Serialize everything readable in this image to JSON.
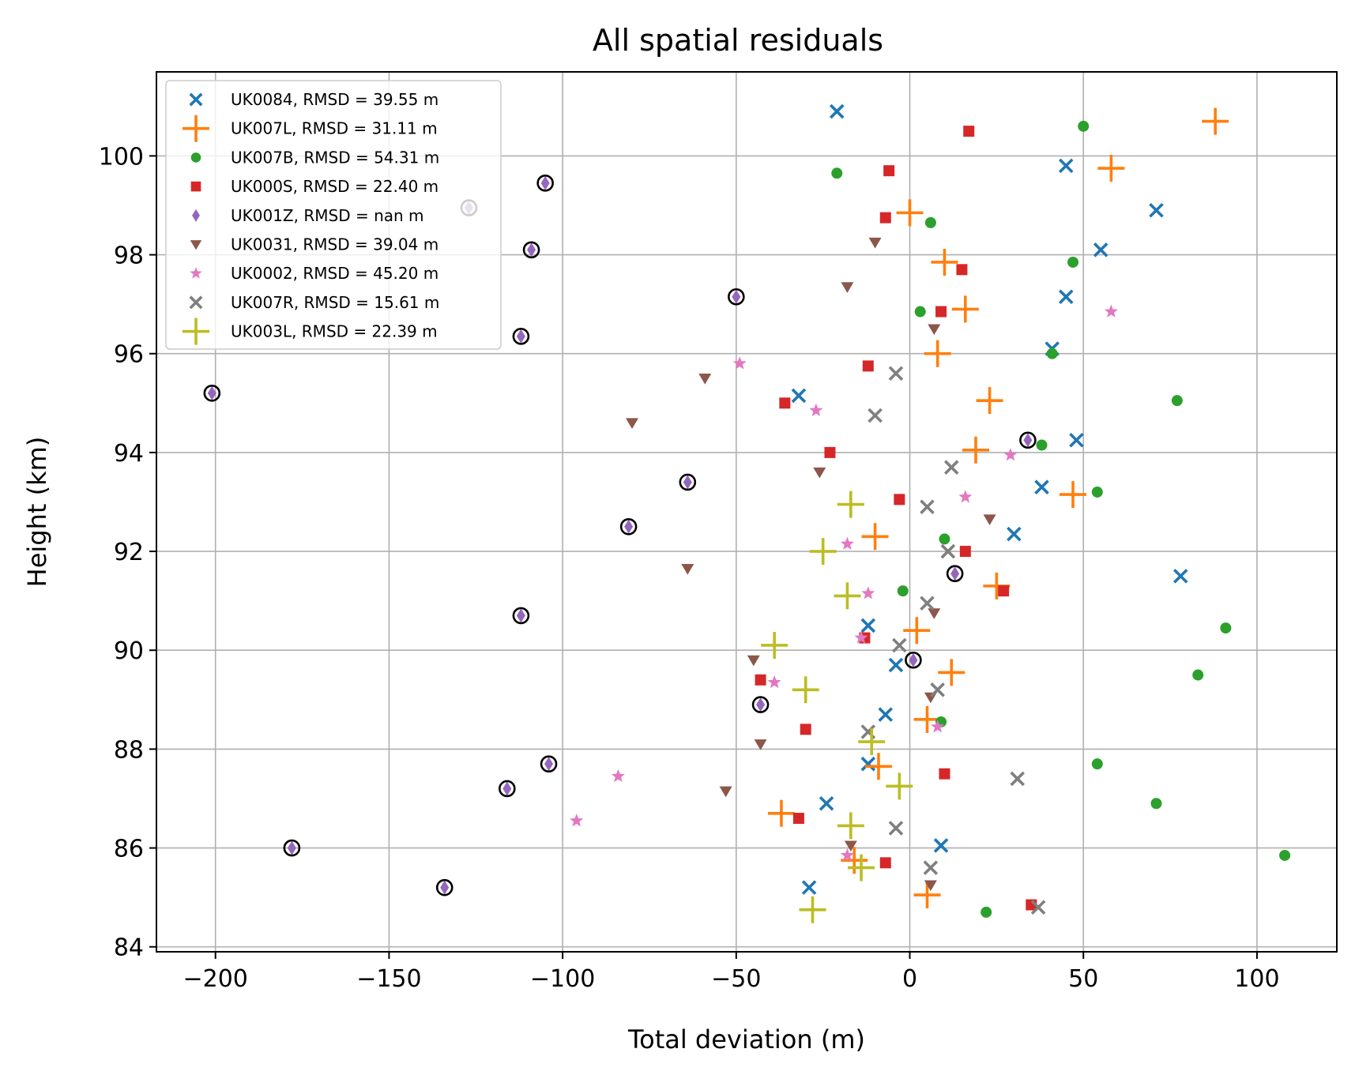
{
  "chart_data": {
    "type": "scatter",
    "title": "All spatial residuals",
    "xlabel": "Total deviation (m)",
    "ylabel": "Height (km)",
    "xlim": [
      -217,
      123
    ],
    "ylim": [
      83.9,
      101.7
    ],
    "xticks": [
      -200,
      -150,
      -100,
      -50,
      0,
      50,
      100
    ],
    "xtick_labels": [
      "−200",
      "−150",
      "−100",
      "−50",
      "0",
      "50",
      "100"
    ],
    "yticks": [
      84,
      86,
      88,
      90,
      92,
      94,
      96,
      98,
      100
    ],
    "ytick_labels": [
      "84",
      "86",
      "88",
      "90",
      "92",
      "94",
      "96",
      "98",
      "100"
    ],
    "grid": true,
    "legend_position": "upper left",
    "series": [
      {
        "name": "UK0084, RMSD = 39.55 m",
        "marker": "x",
        "color": "#1f77b4",
        "points": [
          [
            -21,
            100.9
          ],
          [
            45,
            99.8
          ],
          [
            71,
            98.9
          ],
          [
            55,
            98.1
          ],
          [
            45,
            97.15
          ],
          [
            41,
            96.1
          ],
          [
            -32,
            95.15
          ],
          [
            48,
            94.25
          ],
          [
            38,
            93.3
          ],
          [
            30,
            92.35
          ],
          [
            78,
            91.5
          ],
          [
            -12,
            90.5
          ],
          [
            -4,
            89.7
          ],
          [
            -7,
            88.7
          ],
          [
            -12,
            87.7
          ],
          [
            -24,
            86.9
          ],
          [
            9,
            86.05
          ],
          [
            -29,
            85.2
          ]
        ]
      },
      {
        "name": "UK007L, RMSD = 31.11 m",
        "marker": "plus",
        "color": "#ff7f0e",
        "points": [
          [
            88,
            100.7
          ],
          [
            58,
            99.75
          ],
          [
            0,
            98.85
          ],
          [
            10,
            97.85
          ],
          [
            16,
            96.9
          ],
          [
            8,
            96.0
          ],
          [
            23,
            95.05
          ],
          [
            19,
            94.05
          ],
          [
            47,
            93.15
          ],
          [
            -10,
            92.3
          ],
          [
            25,
            91.3
          ],
          [
            2,
            90.4
          ],
          [
            12,
            89.55
          ],
          [
            5,
            88.6
          ],
          [
            -9,
            87.65
          ],
          [
            -37,
            86.7
          ],
          [
            -16,
            85.75
          ],
          [
            5,
            85.05
          ]
        ]
      },
      {
        "name": "UK007B, RMSD = 54.31 m",
        "marker": "circle",
        "color": "#2ca02c",
        "points": [
          [
            50,
            100.6
          ],
          [
            -21,
            99.65
          ],
          [
            6,
            98.65
          ],
          [
            47,
            97.85
          ],
          [
            3,
            96.85
          ],
          [
            41,
            96.0
          ],
          [
            77,
            95.05
          ],
          [
            38,
            94.15
          ],
          [
            54,
            93.2
          ],
          [
            10,
            92.25
          ],
          [
            -2,
            91.2
          ],
          [
            91,
            90.45
          ],
          [
            83,
            89.5
          ],
          [
            9,
            88.55
          ],
          [
            54,
            87.7
          ],
          [
            71,
            86.9
          ],
          [
            108,
            85.85
          ],
          [
            22,
            84.7
          ]
        ]
      },
      {
        "name": "UK000S, RMSD = 22.40 m",
        "marker": "square",
        "color": "#d62728",
        "points": [
          [
            17,
            100.5
          ],
          [
            -6,
            99.7
          ],
          [
            -7,
            98.75
          ],
          [
            15,
            97.7
          ],
          [
            9,
            96.85
          ],
          [
            -12,
            95.75
          ],
          [
            -36,
            95.0
          ],
          [
            -23,
            94.0
          ],
          [
            -3,
            93.05
          ],
          [
            16,
            92.0
          ],
          [
            27,
            91.2
          ],
          [
            -13,
            90.25
          ],
          [
            -43,
            89.4
          ],
          [
            -30,
            88.4
          ],
          [
            10,
            87.5
          ],
          [
            -32,
            86.6
          ],
          [
            -7,
            85.7
          ],
          [
            35,
            84.85
          ]
        ]
      },
      {
        "name": "UK001Z, RMSD = nan m",
        "marker": "diamond",
        "color": "#9467bd",
        "outlined": true,
        "points": [
          [
            -105,
            99.45
          ],
          [
            -127,
            98.95
          ],
          [
            -109,
            98.1
          ],
          [
            -50,
            97.15
          ],
          [
            -112,
            96.35
          ],
          [
            -201,
            95.2
          ],
          [
            34,
            94.25
          ],
          [
            -64,
            93.4
          ],
          [
            -81,
            92.5
          ],
          [
            13,
            91.55
          ],
          [
            -112,
            90.7
          ],
          [
            1,
            89.8
          ],
          [
            -43,
            88.9
          ],
          [
            -104,
            87.7
          ],
          [
            -116,
            87.2
          ],
          [
            -178,
            86.0
          ],
          [
            -134,
            85.2
          ]
        ]
      },
      {
        "name": "UK0031, RMSD = 39.04 m",
        "marker": "triangle-down",
        "color": "#8c564b",
        "points": [
          [
            -10,
            98.25
          ],
          [
            -18,
            97.35
          ],
          [
            7,
            96.5
          ],
          [
            -59,
            95.5
          ],
          [
            -80,
            94.6
          ],
          [
            -26,
            93.6
          ],
          [
            23,
            92.65
          ],
          [
            -64,
            91.65
          ],
          [
            7,
            90.75
          ],
          [
            -45,
            89.8
          ],
          [
            6,
            89.05
          ],
          [
            -43,
            88.1
          ],
          [
            -53,
            87.15
          ],
          [
            -17,
            86.05
          ],
          [
            6,
            85.25
          ]
        ]
      },
      {
        "name": "UK0002, RMSD = 45.20 m",
        "marker": "star",
        "color": "#e377c2",
        "points": [
          [
            58,
            96.85
          ],
          [
            -49,
            95.8
          ],
          [
            -27,
            94.85
          ],
          [
            29,
            93.95
          ],
          [
            16,
            93.1
          ],
          [
            -18,
            92.15
          ],
          [
            -12,
            91.15
          ],
          [
            -14,
            90.25
          ],
          [
            -39,
            89.35
          ],
          [
            8,
            88.45
          ],
          [
            -84,
            87.45
          ],
          [
            -96,
            86.55
          ],
          [
            -18,
            85.85
          ]
        ]
      },
      {
        "name": "UK007R, RMSD = 15.61 m",
        "marker": "x",
        "color": "#7f7f7f",
        "points": [
          [
            -4,
            95.6
          ],
          [
            -10,
            94.75
          ],
          [
            12,
            93.7
          ],
          [
            5,
            92.9
          ],
          [
            11,
            92.0
          ],
          [
            5,
            90.95
          ],
          [
            -3,
            90.1
          ],
          [
            8,
            89.2
          ],
          [
            -12,
            88.35
          ],
          [
            31,
            87.4
          ],
          [
            -4,
            86.4
          ],
          [
            6,
            85.6
          ],
          [
            37,
            84.8
          ]
        ]
      },
      {
        "name": "UK003L, RMSD = 22.39 m",
        "marker": "plus",
        "color": "#bcbd22",
        "points": [
          [
            -17,
            92.95
          ],
          [
            -25,
            92.0
          ],
          [
            -18,
            91.1
          ],
          [
            -39,
            90.1
          ],
          [
            -30,
            89.2
          ],
          [
            -11,
            88.15
          ],
          [
            -3,
            87.25
          ],
          [
            -17,
            86.45
          ],
          [
            -14,
            85.6
          ],
          [
            -28,
            84.75
          ]
        ]
      }
    ]
  }
}
